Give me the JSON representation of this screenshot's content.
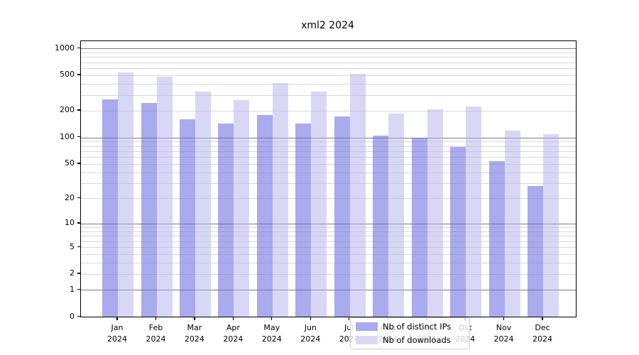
{
  "chart_data": {
    "type": "bar",
    "title": "xml2 2024",
    "xlabel": "",
    "ylabel": "",
    "scale": "log1p",
    "ylim": [
      0,
      1200
    ],
    "y_ticks": [
      0,
      1,
      2,
      5,
      10,
      20,
      50,
      100,
      200,
      500,
      1000
    ],
    "y_tick_labels": [
      "0",
      "1",
      "2",
      "5",
      "10",
      "20",
      "50",
      "100",
      "200",
      "500",
      "1000"
    ],
    "grid": true,
    "legend_position": "lower center",
    "categories": [
      "Jan",
      "Feb",
      "Mar",
      "Apr",
      "May",
      "Jun",
      "Jul",
      "Aug",
      "Sep",
      "Oct",
      "Nov",
      "Dec"
    ],
    "year_label": "2024",
    "series": [
      {
        "name": "Nb of distinct IPs",
        "color": "#aaaaee",
        "values": [
          270,
          243,
          160,
          143,
          180,
          144,
          172,
          105,
          99,
          78,
          54,
          28
        ]
      },
      {
        "name": "Nb of downloads",
        "color": "#d8d8f6",
        "values": [
          535,
          485,
          330,
          265,
          410,
          325,
          520,
          186,
          208,
          223,
          120,
          108
        ]
      }
    ]
  },
  "colors": {
    "major_grid": "rgba(0,0,0,0.30)",
    "minor_grid": "rgba(0,0,0,0.08)",
    "spine": "#000000",
    "background": "#ffffff"
  }
}
